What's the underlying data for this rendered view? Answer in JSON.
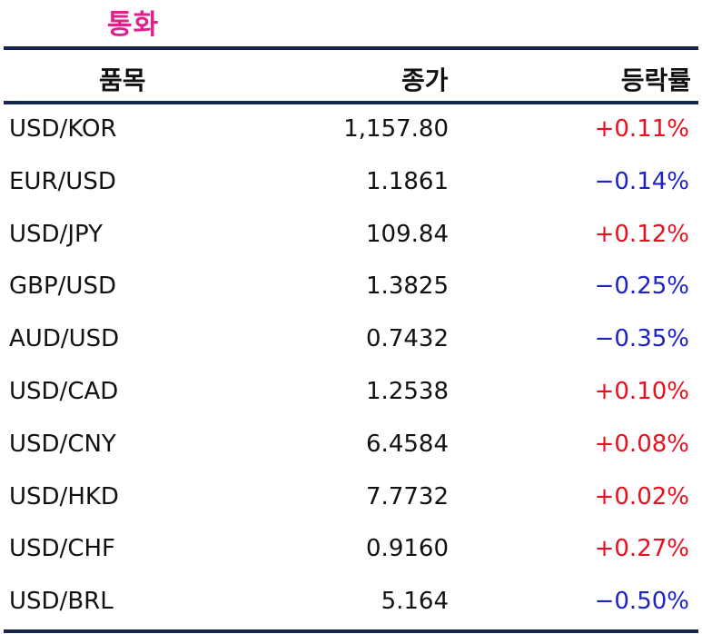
{
  "title": "통화",
  "header": {
    "item": "품목",
    "close": "종가",
    "change": "등락률"
  },
  "colors": {
    "title": "#e0208c",
    "rule": "#15254d",
    "up": "#e8101e",
    "down": "#1c22c8"
  },
  "rows": [
    {
      "item": "USD/KOR",
      "close": "1,157.80",
      "change": "+0.11%",
      "direction": "up"
    },
    {
      "item": "EUR/USD",
      "close": "1.1861",
      "change": "−0.14%",
      "direction": "down"
    },
    {
      "item": "USD/JPY",
      "close": "109.84",
      "change": "+0.12%",
      "direction": "up"
    },
    {
      "item": "GBP/USD",
      "close": "1.3825",
      "change": "−0.25%",
      "direction": "down"
    },
    {
      "item": "AUD/USD",
      "close": "0.7432",
      "change": "−0.35%",
      "direction": "down"
    },
    {
      "item": "USD/CAD",
      "close": "1.2538",
      "change": "+0.10%",
      "direction": "up"
    },
    {
      "item": "USD/CNY",
      "close": "6.4584",
      "change": "+0.08%",
      "direction": "up"
    },
    {
      "item": "USD/HKD",
      "close": "7.7732",
      "change": "+0.02%",
      "direction": "up"
    },
    {
      "item": "USD/CHF",
      "close": "0.9160",
      "change": "+0.27%",
      "direction": "up"
    },
    {
      "item": "USD/BRL",
      "close": "5.164",
      "change": "−0.50%",
      "direction": "down"
    }
  ]
}
